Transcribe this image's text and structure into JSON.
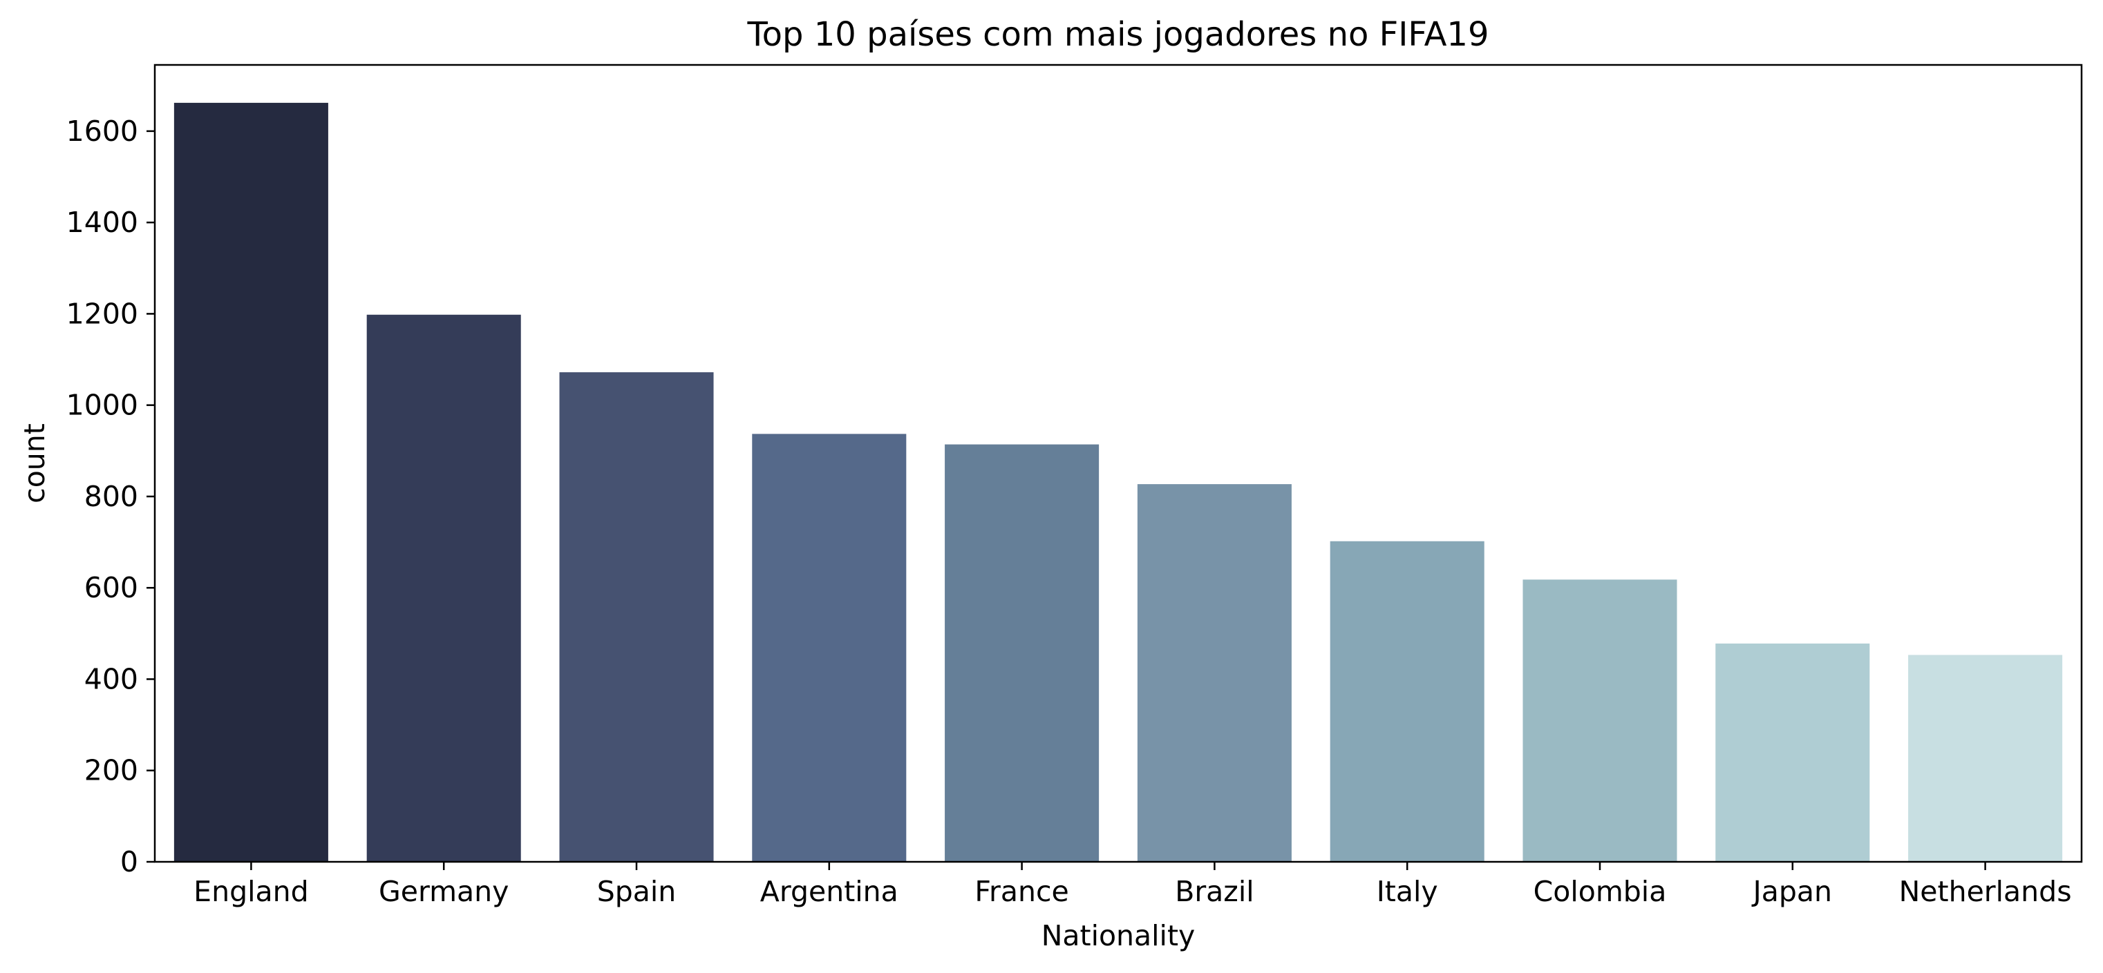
{
  "chart_data": {
    "type": "bar",
    "title": "Top 10 países com mais jogadores no FIFA19",
    "xlabel": "Nationality",
    "ylabel": "count",
    "categories": [
      "England",
      "Germany",
      "Spain",
      "Argentina",
      "France",
      "Brazil",
      "Italy",
      "Colombia",
      "Japan",
      "Netherlands"
    ],
    "values": [
      1662,
      1198,
      1072,
      937,
      914,
      827,
      702,
      618,
      478,
      453
    ],
    "colors": [
      "#252a40",
      "#343c58",
      "#465271",
      "#55698a",
      "#657f98",
      "#7893a8",
      "#87a7b6",
      "#9abac3",
      "#afcdd3",
      "#c8dfe2"
    ],
    "yticks": [
      0,
      200,
      400,
      600,
      800,
      1000,
      1200,
      1400,
      1600
    ],
    "ylim": [
      0,
      1745
    ],
    "grid": false,
    "legend": "none"
  }
}
